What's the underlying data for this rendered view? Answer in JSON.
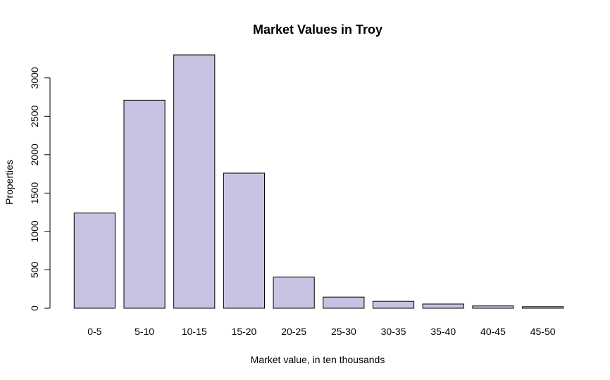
{
  "chart_data": {
    "type": "bar",
    "title": "Market Values in Troy",
    "xlabel": "Market value, in ten thousands",
    "ylabel": "Properties",
    "categories": [
      "0-5",
      "5-10",
      "10-15",
      "15-20",
      "20-25",
      "25-30",
      "30-35",
      "35-40",
      "40-45",
      "45-50"
    ],
    "values": [
      1240,
      2710,
      3300,
      1760,
      405,
      145,
      90,
      55,
      30,
      20
    ],
    "ylim": [
      0,
      3300
    ],
    "yticks": [
      0,
      500,
      1000,
      1500,
      2000,
      2500,
      3000
    ],
    "ytick_labels": [
      "0",
      "500",
      "1000",
      "1500",
      "2000",
      "2500",
      "3000"
    ],
    "grid": false,
    "bar_color": "#c8c3e3",
    "bar_edge_color": "#000000"
  }
}
